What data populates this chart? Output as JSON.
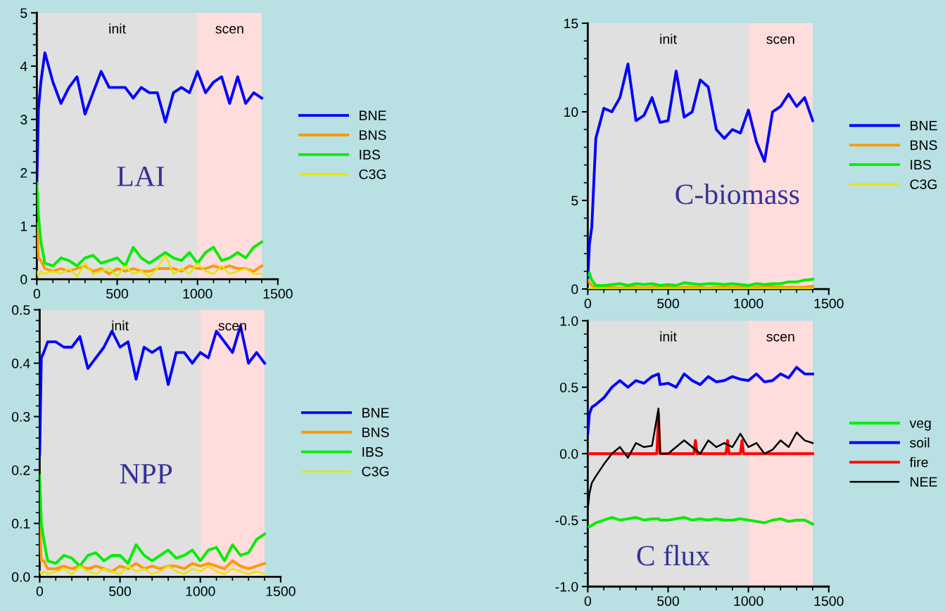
{
  "chart_data": [
    {
      "type": "line",
      "title": "LAI",
      "x": [
        0,
        10,
        25,
        50,
        100,
        150,
        200,
        250,
        300,
        350,
        400,
        450,
        500,
        550,
        600,
        650,
        700,
        750,
        800,
        850,
        900,
        950,
        1000,
        1050,
        1100,
        1150,
        1200,
        1250,
        1300,
        1350,
        1400
      ],
      "xlim": [
        0,
        1500
      ],
      "xticks": [
        0,
        500,
        1000,
        1500
      ],
      "ylim": [
        0,
        5
      ],
      "yticks": [
        0,
        1,
        2,
        3,
        4,
        5
      ],
      "legend": "right",
      "bands": [
        {
          "axis": "x",
          "from": 0,
          "to": 1000,
          "label": "init",
          "color": "#e0e0e0"
        },
        {
          "axis": "x",
          "from": 1000,
          "to": 1400,
          "label": "scen",
          "color": "#ffdddd"
        }
      ],
      "series": [
        {
          "name": "BNE",
          "color": "#0000ff",
          "values": [
            1.8,
            3.2,
            3.7,
            4.25,
            3.7,
            3.3,
            3.6,
            3.8,
            3.1,
            3.5,
            3.9,
            3.6,
            3.6,
            3.6,
            3.4,
            3.6,
            3.5,
            3.5,
            2.95,
            3.5,
            3.6,
            3.5,
            3.9,
            3.5,
            3.7,
            3.8,
            3.3,
            3.8,
            3.3,
            3.5,
            3.4
          ]
        },
        {
          "name": "BNS",
          "color": "#ff9900",
          "values": [
            1.05,
            0.4,
            0.35,
            0.2,
            0.15,
            0.2,
            0.15,
            0.2,
            0.25,
            0.15,
            0.2,
            0.1,
            0.2,
            0.15,
            0.2,
            0.15,
            0.15,
            0.2,
            0.2,
            0.2,
            0.15,
            0.25,
            0.2,
            0.2,
            0.25,
            0.2,
            0.25,
            0.2,
            0.2,
            0.15,
            0.25
          ]
        },
        {
          "name": "IBS",
          "color": "#00ee00",
          "values": [
            1.8,
            1.2,
            0.7,
            0.3,
            0.25,
            0.4,
            0.35,
            0.25,
            0.4,
            0.45,
            0.3,
            0.35,
            0.4,
            0.25,
            0.6,
            0.4,
            0.3,
            0.4,
            0.5,
            0.4,
            0.35,
            0.5,
            0.3,
            0.5,
            0.6,
            0.35,
            0.4,
            0.5,
            0.4,
            0.6,
            0.7
          ]
        },
        {
          "name": "C3G",
          "color": "#e6e600",
          "values": [
            0.15,
            0.05,
            0.15,
            0.1,
            0.15,
            0.1,
            0.2,
            0.05,
            0.3,
            0.1,
            0.15,
            0.2,
            0.05,
            0.25,
            0.1,
            0.15,
            0.05,
            0.2,
            0.45,
            0.1,
            0.2,
            0.1,
            0.3,
            0.15,
            0.1,
            0.25,
            0.1,
            0.15,
            0.2,
            0.1,
            0.1
          ]
        }
      ]
    },
    {
      "type": "line",
      "title": "C-biomass",
      "x": [
        0,
        10,
        25,
        50,
        100,
        150,
        200,
        250,
        300,
        350,
        400,
        450,
        500,
        550,
        600,
        650,
        700,
        750,
        800,
        850,
        900,
        950,
        1000,
        1050,
        1100,
        1150,
        1200,
        1250,
        1300,
        1350,
        1400
      ],
      "xlim": [
        0,
        1500
      ],
      "xticks": [
        0,
        500,
        1000,
        1500
      ],
      "ylim": [
        0,
        15
      ],
      "yticks": [
        0,
        5,
        10,
        15
      ],
      "legend": "right",
      "bands": [
        {
          "axis": "x",
          "from": 0,
          "to": 1000,
          "label": "init",
          "color": "#e0e0e0"
        },
        {
          "axis": "x",
          "from": 1000,
          "to": 1400,
          "label": "scen",
          "color": "#ffdddd"
        }
      ],
      "series": [
        {
          "name": "BNE",
          "color": "#0000ff",
          "values": [
            0.5,
            2.5,
            3.5,
            8.5,
            10.2,
            10,
            10.8,
            12.7,
            9.5,
            9.8,
            10.8,
            9.4,
            9.5,
            12.3,
            9.7,
            10,
            11.8,
            11.4,
            9,
            8.5,
            9,
            8.8,
            10.1,
            8.3,
            7.2,
            10,
            10.3,
            11,
            10.3,
            10.8,
            9.5
          ]
        },
        {
          "name": "BNS",
          "color": "#ff9900",
          "values": [
            0.5,
            0.35,
            0.2,
            0.1,
            0.1,
            0.1,
            0.05,
            0.1,
            0.1,
            0.05,
            0.1,
            0.1,
            0.1,
            0.05,
            0.1,
            0.1,
            0.1,
            0.05,
            0.1,
            0.1,
            0.1,
            0.1,
            0.05,
            0.1,
            0.1,
            0.15,
            0.1,
            0.1,
            0.1,
            0.1,
            0.15
          ]
        },
        {
          "name": "IBS",
          "color": "#00ee00",
          "values": [
            0.8,
            0.9,
            0.5,
            0.2,
            0.2,
            0.25,
            0.3,
            0.2,
            0.3,
            0.25,
            0.3,
            0.2,
            0.25,
            0.2,
            0.35,
            0.3,
            0.25,
            0.3,
            0.3,
            0.25,
            0.3,
            0.25,
            0.2,
            0.3,
            0.25,
            0.3,
            0.3,
            0.4,
            0.4,
            0.5,
            0.55
          ]
        },
        {
          "name": "C3G",
          "color": "#e6e600",
          "values": [
            0.02,
            0.02,
            0.02,
            0.02,
            0.02,
            0.02,
            0.02,
            0.02,
            0.03,
            0.02,
            0.02,
            0.02,
            0.02,
            0.02,
            0.02,
            0.02,
            0.02,
            0.02,
            0.03,
            0.02,
            0.02,
            0.02,
            0.02,
            0.02,
            0.03,
            0.02,
            0.02,
            0.02,
            0.02,
            0.02,
            0.02
          ]
        }
      ]
    },
    {
      "type": "line",
      "title": "NPP",
      "x": [
        0,
        10,
        25,
        50,
        100,
        150,
        200,
        250,
        300,
        350,
        400,
        450,
        500,
        550,
        600,
        650,
        700,
        750,
        800,
        850,
        900,
        950,
        1000,
        1050,
        1100,
        1150,
        1200,
        1250,
        1300,
        1350,
        1400
      ],
      "xlim": [
        0,
        1500
      ],
      "xticks": [
        0,
        500,
        1000,
        1500
      ],
      "ylim": [
        0,
        0.5
      ],
      "yticks": [
        {
          "value": 0,
          "label": "0.0"
        },
        0.1,
        0.2,
        0.3,
        0.4,
        0.5
      ],
      "legend": "right",
      "bands": [
        {
          "axis": "x",
          "from": 0,
          "to": 1000,
          "label": "init",
          "color": "#e0e0e0"
        },
        {
          "axis": "x",
          "from": 1000,
          "to": 1400,
          "label": "scen",
          "color": "#ffdddd"
        }
      ],
      "series": [
        {
          "name": "BNE",
          "color": "#0000ff",
          "values": [
            0.23,
            0.41,
            0.42,
            0.44,
            0.44,
            0.43,
            0.43,
            0.45,
            0.39,
            0.41,
            0.43,
            0.46,
            0.43,
            0.44,
            0.37,
            0.43,
            0.42,
            0.43,
            0.36,
            0.42,
            0.42,
            0.4,
            0.42,
            0.41,
            0.46,
            0.44,
            0.42,
            0.47,
            0.4,
            0.42,
            0.4
          ]
        },
        {
          "name": "BNS",
          "color": "#ff9900",
          "values": [
            0.1,
            0.03,
            0.03,
            0.015,
            0.015,
            0.02,
            0.015,
            0.02,
            0.015,
            0.02,
            0.015,
            0.01,
            0.02,
            0.015,
            0.025,
            0.015,
            0.02,
            0.015,
            0.02,
            0.02,
            0.015,
            0.025,
            0.02,
            0.025,
            0.02,
            0.015,
            0.03,
            0.02,
            0.015,
            0.02,
            0.025
          ]
        },
        {
          "name": "IBS",
          "color": "#00ee00",
          "values": [
            0.19,
            0.1,
            0.07,
            0.03,
            0.025,
            0.04,
            0.035,
            0.02,
            0.04,
            0.045,
            0.03,
            0.04,
            0.04,
            0.025,
            0.06,
            0.04,
            0.03,
            0.04,
            0.05,
            0.035,
            0.04,
            0.05,
            0.03,
            0.05,
            0.055,
            0.03,
            0.06,
            0.04,
            0.045,
            0.07,
            0.08
          ]
        },
        {
          "name": "C3G",
          "color": "#e6e600",
          "values": [
            0.01,
            0.005,
            0.01,
            0.005,
            0.01,
            0.015,
            0.005,
            0.02,
            0.01,
            0.005,
            0.015,
            0.01,
            0.005,
            0.02,
            0.01,
            0.015,
            0.005,
            0.01,
            0.02,
            0.01,
            0.005,
            0.015,
            0.01,
            0.02,
            0.01,
            0.005,
            0.015,
            0.01,
            0.005,
            0.01,
            0.005
          ]
        }
      ]
    },
    {
      "type": "line",
      "title": "C flux",
      "x": [
        0,
        10,
        25,
        50,
        100,
        150,
        200,
        250,
        300,
        350,
        400,
        440,
        450,
        500,
        550,
        600,
        650,
        700,
        750,
        800,
        850,
        900,
        950,
        1000,
        1050,
        1100,
        1150,
        1200,
        1250,
        1300,
        1350,
        1400
      ],
      "xlim": [
        0,
        1500
      ],
      "xticks": [
        0,
        500,
        1000,
        1500
      ],
      "ylim": [
        -1,
        1
      ],
      "yticks": [
        {
          "value": -1,
          "label": "-1.0"
        },
        {
          "value": -0.5,
          "label": "-0.5"
        },
        {
          "value": 0,
          "label": "0.0"
        },
        0.5,
        {
          "value": 1,
          "label": "1.0"
        }
      ],
      "legend": "right",
      "bands": [
        {
          "axis": "x",
          "from": 0,
          "to": 1000,
          "label": "init",
          "color": "#e0e0e0"
        },
        {
          "axis": "x",
          "from": 1000,
          "to": 1400,
          "label": "scen",
          "color": "#ffdddd"
        }
      ],
      "series": [
        {
          "name": "veg",
          "color": "#00ee00",
          "values": [
            -0.55,
            -0.55,
            -0.54,
            -0.52,
            -0.5,
            -0.48,
            -0.5,
            -0.49,
            -0.48,
            -0.5,
            -0.49,
            -0.49,
            -0.5,
            -0.5,
            -0.49,
            -0.48,
            -0.5,
            -0.49,
            -0.5,
            -0.49,
            -0.5,
            -0.5,
            -0.49,
            -0.5,
            -0.51,
            -0.52,
            -0.5,
            -0.49,
            -0.51,
            -0.5,
            -0.5,
            -0.53
          ]
        },
        {
          "name": "soil",
          "color": "#0000ff",
          "values": [
            0.15,
            0.3,
            0.35,
            0.37,
            0.42,
            0.5,
            0.55,
            0.5,
            0.55,
            0.53,
            0.58,
            0.6,
            0.52,
            0.53,
            0.5,
            0.6,
            0.55,
            0.52,
            0.58,
            0.54,
            0.55,
            0.58,
            0.56,
            0.55,
            0.6,
            0.54,
            0.55,
            0.6,
            0.57,
            0.65,
            0.6,
            0.6
          ]
        },
        {
          "name": "fire",
          "color": "#ff0000",
          "x": [
            0,
            430,
            440,
            450,
            660,
            670,
            680,
            860,
            870,
            880,
            950,
            960,
            970,
            1400
          ],
          "values": [
            0,
            0,
            0.3,
            0,
            0,
            0.1,
            0,
            0,
            0.1,
            0,
            0,
            0.1,
            0,
            0
          ]
        },
        {
          "name": "NEE",
          "color": "#000000",
          "values": [
            -0.42,
            -0.3,
            -0.22,
            -0.17,
            -0.08,
            0.0,
            0.05,
            -0.03,
            0.08,
            0.05,
            0.06,
            0.34,
            0.0,
            0.0,
            0.05,
            0.1,
            0.05,
            0.0,
            0.1,
            0.05,
            0.08,
            0.05,
            0.15,
            0.05,
            0.08,
            0.0,
            0.03,
            0.1,
            0.05,
            0.16,
            0.1,
            0.08
          ]
        }
      ]
    }
  ]
}
